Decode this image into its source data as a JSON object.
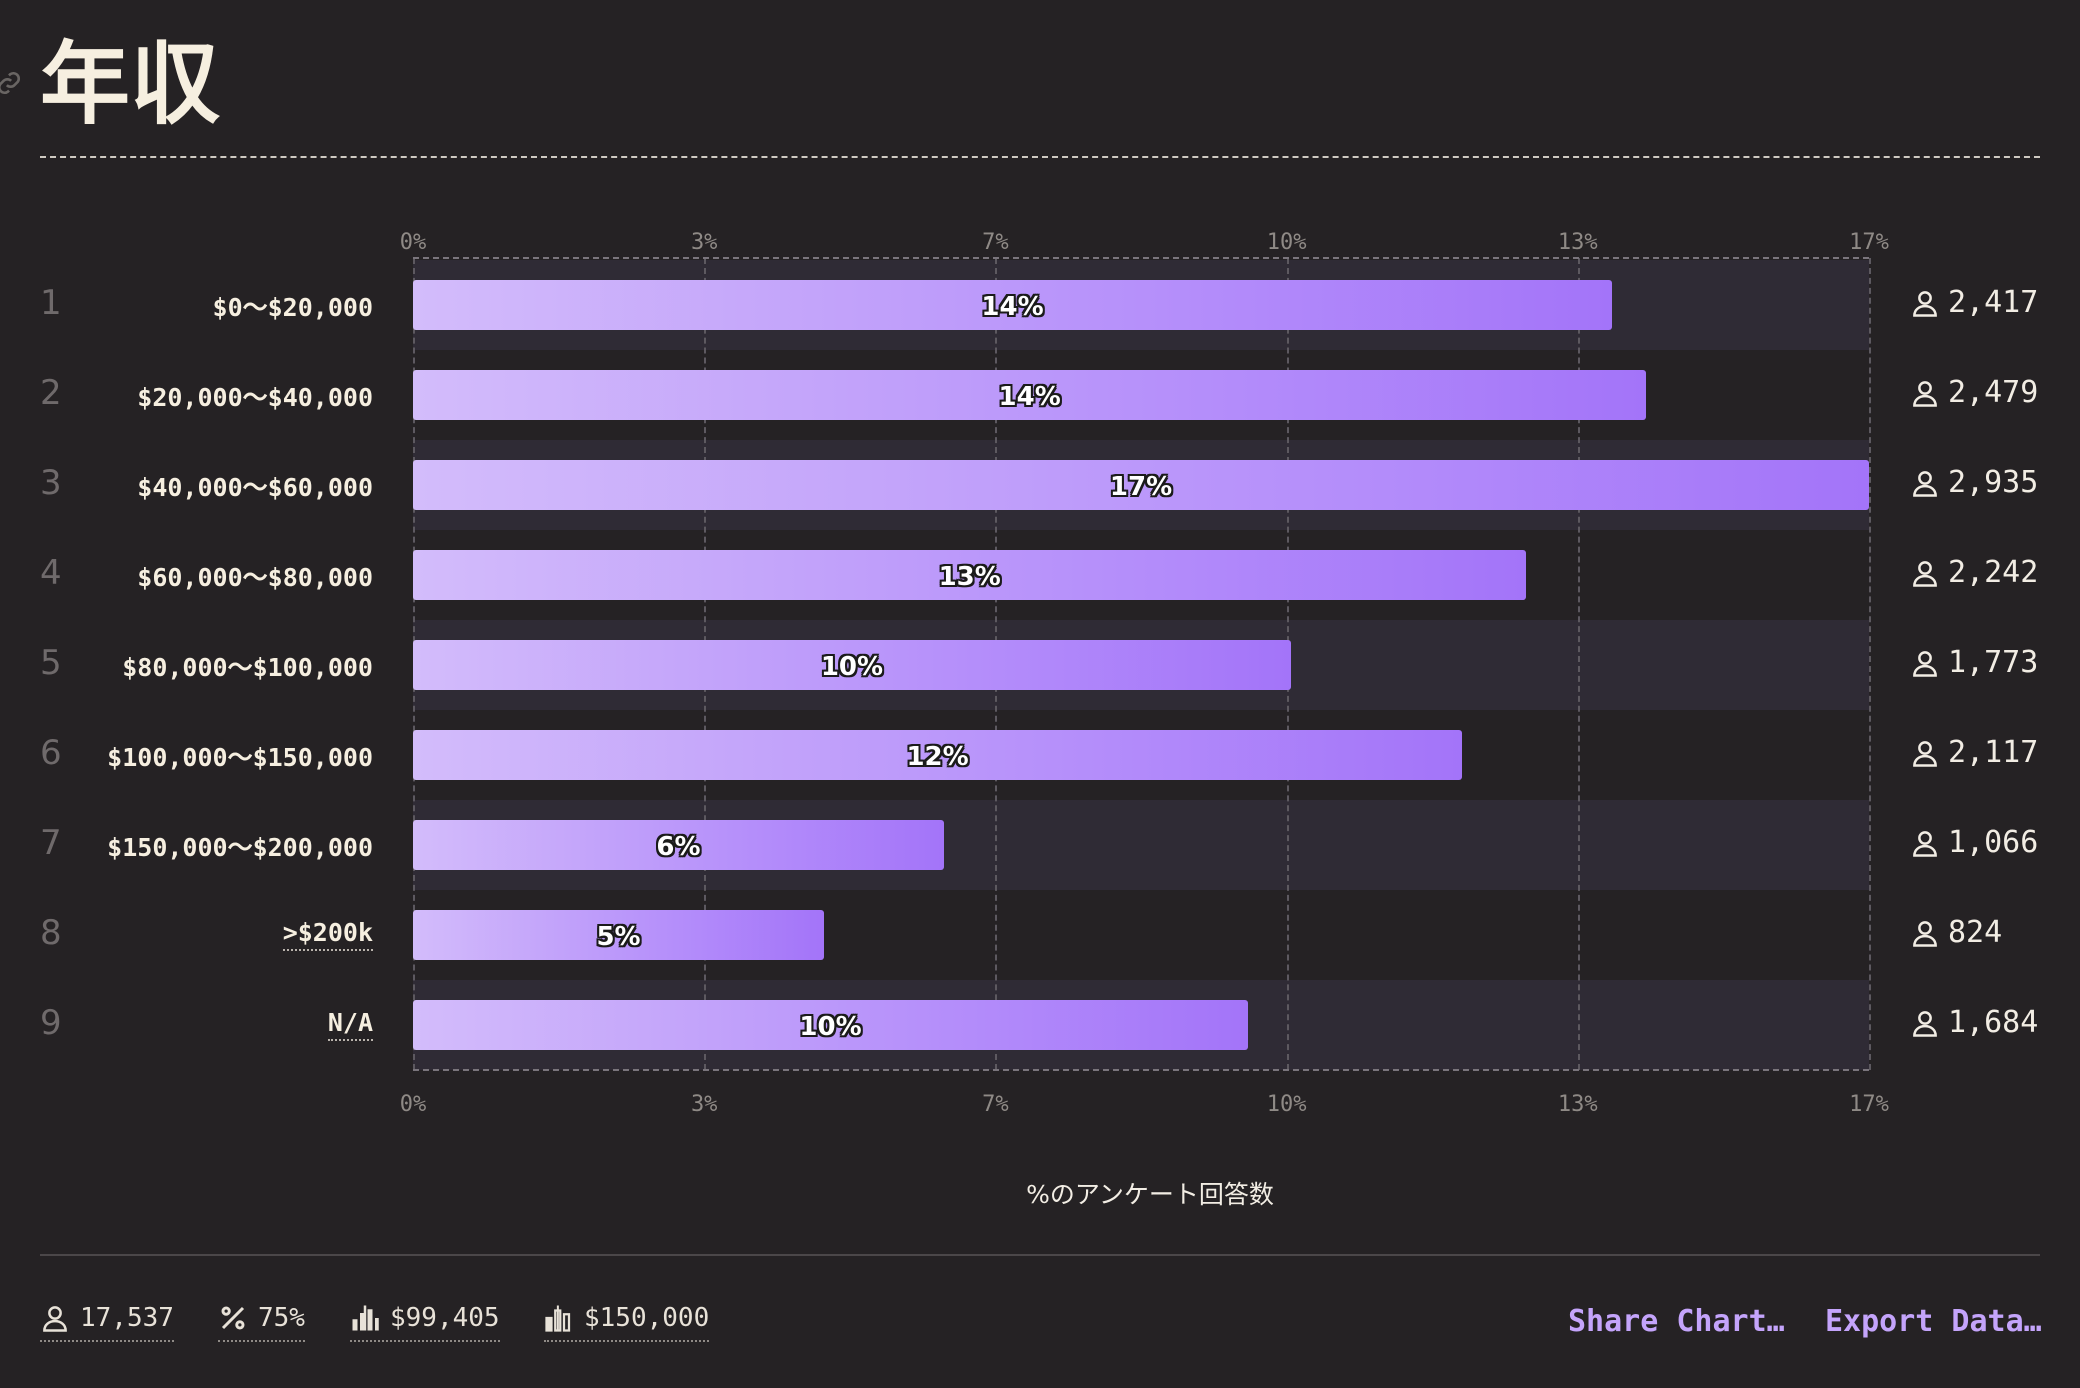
{
  "title": "年収",
  "x_axis_title": "%のアンケート回答数",
  "colors": {
    "background": "#252224",
    "bar_start": "#d3bcfb",
    "bar_end": "#a374f9",
    "band": "#2f2b35",
    "accent": "#c4a4fb"
  },
  "chart_data": {
    "type": "bar",
    "orientation": "horizontal",
    "xlim": [
      0,
      17
    ],
    "ticks": [
      "0%",
      "3%",
      "7%",
      "10%",
      "13%",
      "17%"
    ],
    "tick_values": [
      0,
      3.4,
      6.8,
      10.2,
      13.6,
      17
    ],
    "xlabel": "%のアンケート回答数",
    "rows": [
      {
        "rank": "1",
        "label": "$0〜$20,000",
        "percent": 14,
        "percent_label": "14%",
        "count": "2,417",
        "dotted": false
      },
      {
        "rank": "2",
        "label": "$20,000〜$40,000",
        "percent": 14.4,
        "percent_label": "14%",
        "count": "2,479",
        "dotted": false
      },
      {
        "rank": "3",
        "label": "$40,000〜$60,000",
        "percent": 17,
        "percent_label": "17%",
        "count": "2,935",
        "dotted": false
      },
      {
        "rank": "4",
        "label": "$60,000〜$80,000",
        "percent": 13,
        "percent_label": "13%",
        "count": "2,242",
        "dotted": false
      },
      {
        "rank": "5",
        "label": "$80,000〜$100,000",
        "percent": 10.25,
        "percent_label": "10%",
        "count": "1,773",
        "dotted": false
      },
      {
        "rank": "6",
        "label": "$100,000〜$150,000",
        "percent": 12.25,
        "percent_label": "12%",
        "count": "2,117",
        "dotted": false
      },
      {
        "rank": "7",
        "label": "$150,000〜$200,000",
        "percent": 6.2,
        "percent_label": "6%",
        "count": "1,066",
        "dotted": false
      },
      {
        "rank": "8",
        "label": ">$200k",
        "percent": 4.8,
        "percent_label": "5%",
        "count": "824",
        "dotted": true
      },
      {
        "rank": "9",
        "label": "N/A",
        "percent": 9.75,
        "percent_label": "10%",
        "count": "1,684",
        "dotted": true
      }
    ]
  },
  "footer": {
    "stats": [
      {
        "icon": "user-icon",
        "value": "17,537"
      },
      {
        "icon": "percent-icon",
        "value": "75%"
      },
      {
        "icon": "average-chart-icon",
        "value": "$99,405"
      },
      {
        "icon": "median-chart-icon",
        "value": "$150,000"
      }
    ],
    "share_label": "Share Chart…",
    "export_label": "Export Data…"
  }
}
